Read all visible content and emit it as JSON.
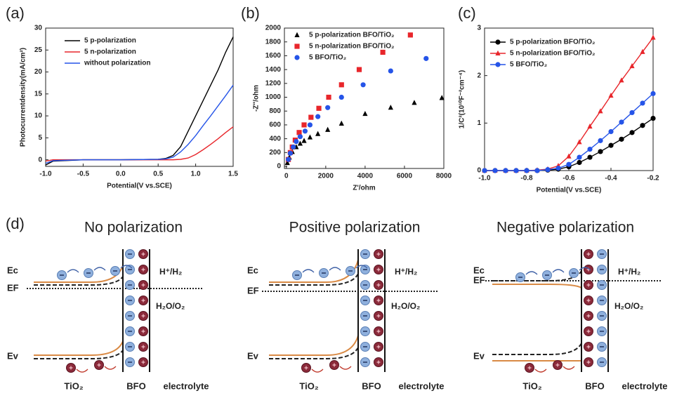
{
  "chart_data": [
    {
      "type": "line",
      "panel_label": "(a)",
      "x_label": "Potential(V vs.SCE)",
      "y_label": "Photocurrentdensity(mA/cm²)",
      "x": [
        -1.0,
        -0.9,
        -0.5,
        0,
        0.5,
        0.6,
        0.7,
        0.8,
        0.9,
        1.0,
        1.1,
        1.2,
        1.3,
        1.4,
        1.5
      ],
      "xlim": [
        -1.0,
        1.5
      ],
      "xticks": [
        {
          "value": -1.0,
          "label": "-1.0"
        },
        -0.5,
        {
          "value": 0,
          "label": "0.0"
        },
        0.5,
        {
          "value": 1.0,
          "label": "1.0"
        },
        1.5
      ],
      "ylim": [
        -1.5,
        30
      ],
      "yticks": [
        0,
        5,
        10,
        15,
        20,
        25,
        30
      ],
      "legend": "upper left",
      "series": [
        {
          "name": "5 p-polarization",
          "color": "#000000",
          "values": [
            -1.2,
            -0.3,
            0,
            0,
            0.1,
            0.3,
            1,
            3,
            6.5,
            10,
            13.5,
            17,
            20.5,
            24.5,
            28
          ]
        },
        {
          "name": "5 n-polarization",
          "color": "#e8262b",
          "values": [
            -0.3,
            0,
            0,
            0,
            0,
            0,
            0,
            0.1,
            0.4,
            1.2,
            2.3,
            3.5,
            4.8,
            6.2,
            7.5
          ]
        },
        {
          "name": "without polarization",
          "color": "#2554e8",
          "values": [
            -0.8,
            -0.2,
            0,
            0,
            0.1,
            0.2,
            0.6,
            1.8,
            3.5,
            5.5,
            7.8,
            10,
            12.3,
            14.6,
            17
          ]
        }
      ]
    },
    {
      "type": "scatter",
      "panel_label": "(b)",
      "x_label": "Z'/ohm",
      "y_label": "-Z''/ohm",
      "xlim": [
        -100,
        8000
      ],
      "xticks": [
        0,
        2000,
        4000,
        6000,
        8000
      ],
      "ylim": [
        -30,
        2000
      ],
      "yticks": [
        0,
        200,
        400,
        600,
        800,
        1000,
        1200,
        1400,
        1600,
        1800,
        2000
      ],
      "legend": "upper left",
      "series": [
        {
          "name": "5 p-polarization BFO/TiO₂",
          "color": "#000000",
          "marker": "triangle",
          "x": [
            50,
            150,
            300,
            500,
            700,
            900,
            1200,
            1600,
            2100,
            2800,
            4000,
            5300,
            6500,
            7900
          ],
          "values": [
            50,
            130,
            210,
            280,
            330,
            370,
            420,
            470,
            530,
            620,
            760,
            850,
            920,
            990
          ]
        },
        {
          "name": "5 n-polarization BFO/TiO₂",
          "color": "#e8262b",
          "marker": "square",
          "x": [
            100,
            200,
            300,
            450,
            650,
            900,
            1250,
            1650,
            2150,
            2800,
            3700,
            4900,
            6300
          ],
          "values": [
            100,
            200,
            280,
            380,
            490,
            600,
            710,
            840,
            1000,
            1180,
            1400,
            1650,
            1900
          ]
        },
        {
          "name": "5 BFO/TiO₂",
          "color": "#2554e8",
          "marker": "circle",
          "x": [
            100,
            200,
            350,
            500,
            700,
            950,
            1200,
            1600,
            2100,
            2800,
            3900,
            5300,
            7100
          ],
          "values": [
            100,
            190,
            280,
            360,
            430,
            510,
            600,
            720,
            850,
            1000,
            1180,
            1380,
            1560
          ]
        }
      ]
    },
    {
      "type": "line",
      "panel_label": "(c)",
      "x_label": "Potential(V vs.SCE)",
      "y_label": "1/C²(10¹⁰F⁻²cm⁻⁴)",
      "x": [
        -1.0,
        -0.95,
        -0.9,
        -0.85,
        -0.8,
        -0.75,
        -0.7,
        -0.65,
        -0.6,
        -0.55,
        -0.5,
        -0.45,
        -0.4,
        -0.35,
        -0.3,
        -0.25,
        -0.2
      ],
      "xlim": [
        -1.0,
        -0.2
      ],
      "xticks": [
        {
          "value": -1.0,
          "label": "-1.0"
        },
        -0.8,
        -0.6,
        -0.4,
        -0.2
      ],
      "ylim": [
        0,
        3
      ],
      "yticks": [
        0,
        1,
        2,
        3
      ],
      "legend": "upper left",
      "series": [
        {
          "name": "5 p-polarization BFO/TiO₂",
          "color": "#000000",
          "marker": "circle",
          "values": [
            0,
            0,
            0,
            0,
            0,
            0,
            0.01,
            0.03,
            0.08,
            0.17,
            0.28,
            0.4,
            0.53,
            0.66,
            0.8,
            0.95,
            1.1
          ]
        },
        {
          "name": "5 n-polarization BFO/TiO₂",
          "color": "#e8262b",
          "marker": "triangle",
          "values": [
            0,
            0,
            0,
            0,
            0,
            0.01,
            0.03,
            0.1,
            0.3,
            0.6,
            0.93,
            1.25,
            1.58,
            1.9,
            2.2,
            2.5,
            2.8
          ]
        },
        {
          "name": "5 BFO/TiO₂",
          "color": "#2554e8",
          "marker": "circle",
          "values": [
            0,
            0,
            0,
            0,
            0,
            0,
            0.02,
            0.05,
            0.13,
            0.28,
            0.45,
            0.63,
            0.82,
            1.02,
            1.22,
            1.42,
            1.62
          ]
        }
      ]
    }
  ],
  "diagram": {
    "label": "(d)",
    "panels": [
      {
        "title": "No polarization",
        "ec": "Ec",
        "ef": "EF",
        "ev": "Ev",
        "redox_top": "H⁺/H₂",
        "redox_bottom": "H₂O/O₂",
        "left": "TiO₂",
        "wall": "BFO",
        "right": "electrolyte"
      },
      {
        "title": "Positive polarization",
        "ec": "Ec",
        "ef": "EF",
        "ev": "Ev",
        "redox_top": "H⁺/H₂",
        "redox_bottom": "H₂O/O₂",
        "left": "TiO₂",
        "wall": "BFO",
        "right": "electrolyte"
      },
      {
        "title": "Negative polarization",
        "ec": "Ec",
        "ef": "EF",
        "ev": "Ev",
        "redox_top": "H⁺/H₂",
        "redox_bottom": "H₂O/O₂",
        "left": "TiO₂",
        "wall": "BFO",
        "right": "electrolyte"
      }
    ]
  }
}
